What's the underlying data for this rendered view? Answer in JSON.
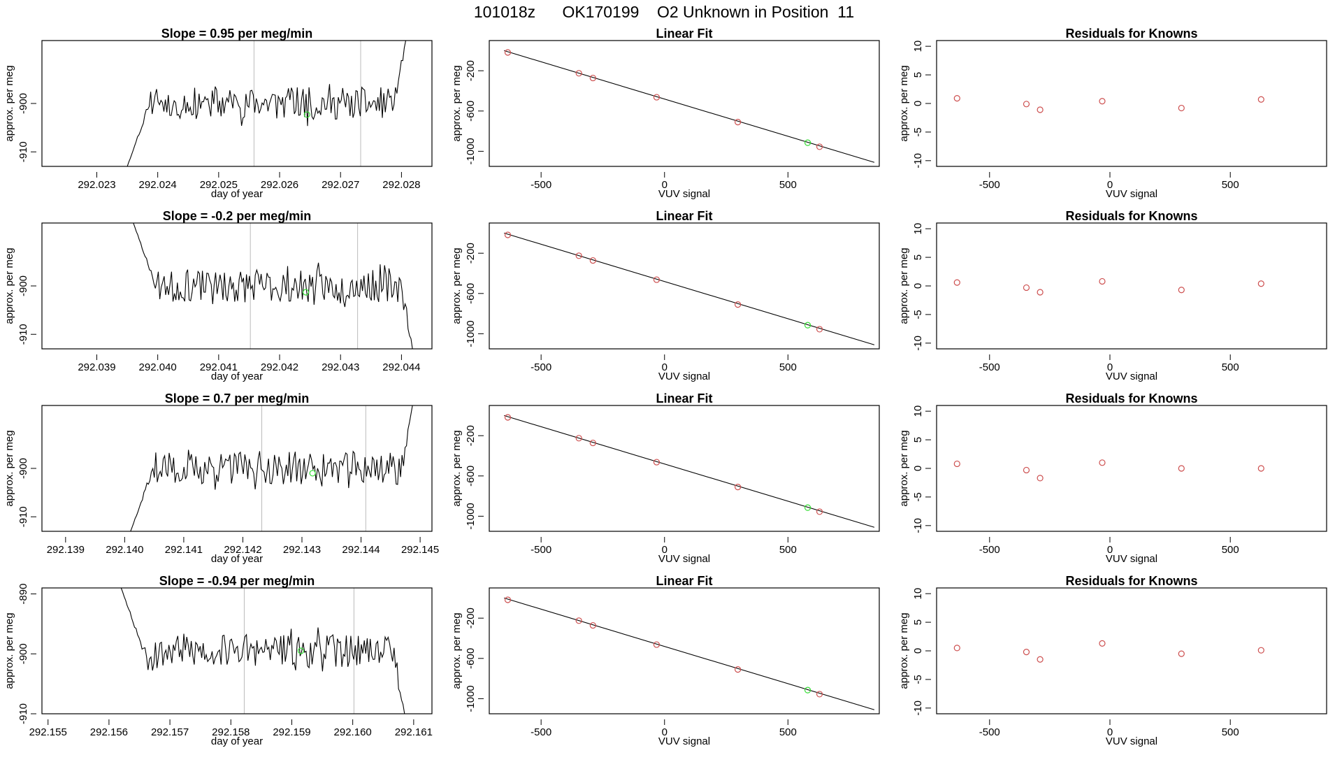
{
  "page_title": "101018z      OK170199    O2 Unknown in Position  11",
  "colors": {
    "frame": "#000000",
    "trace": "#000000",
    "fit_line": "#000000",
    "known_point": "#cd4f4f",
    "unknown_point": "#33dd33",
    "marker_line": "#bbbbbb"
  },
  "chart_data": [
    {
      "type": "line",
      "row": 0,
      "title": "Slope =  0.95  per meg/min",
      "xlabel": "day of year",
      "ylabel": "approx. per meg",
      "xlim": [
        292.0221,
        292.0285
      ],
      "ylim": [
        -913,
        -887
      ],
      "xticks": [
        "292.023",
        "292.024",
        "292.025",
        "292.026",
        "292.027",
        "292.028"
      ],
      "yticks": [
        "-900",
        "-910"
      ],
      "vlines": [
        292.02558,
        292.02733
      ],
      "unknown_point": {
        "x": 292.02645,
        "y": -902.3
      },
      "trace_start": 292.0235,
      "trace_end": 292.02807,
      "trace_seed": 11,
      "trace_levels": [
        -913,
        -901
      ],
      "trace_finish": -887
    },
    {
      "type": "scatter",
      "row": 0,
      "title": "Linear Fit",
      "xlabel": "VUV signal",
      "ylabel": "approx. per meg",
      "xlim": [
        -710,
        870
      ],
      "ylim": [
        -1150,
        100
      ],
      "xticks": [
        "-500",
        "0",
        "500"
      ],
      "yticks": [
        "-200",
        "-600",
        "-1000"
      ],
      "fit_line": {
        "x": [
          -650,
          850
        ],
        "y": [
          0,
          -1110
        ]
      },
      "knowns": [
        [
          -635,
          -18
        ],
        [
          -347,
          -225
        ],
        [
          -290,
          -272
        ],
        [
          -32,
          -463
        ],
        [
          297,
          -710
        ],
        [
          628,
          -955
        ]
      ],
      "unknown": [
        580,
        -915
      ]
    },
    {
      "type": "scatter",
      "row": 0,
      "title": "Residuals for Knowns",
      "xlabel": "VUV signal",
      "ylabel": "approx. per meg",
      "xlim": [
        -720,
        900
      ],
      "ylim": [
        -11,
        11
      ],
      "xticks": [
        "-500",
        "0",
        "500"
      ],
      "yticks": [
        "10",
        "5",
        "0",
        "-5",
        "-10"
      ],
      "residuals": [
        [
          -635,
          0.9
        ],
        [
          -347,
          -0.1
        ],
        [
          -290,
          -1.1
        ],
        [
          -32,
          0.4
        ],
        [
          297,
          -0.8
        ],
        [
          628,
          0.7
        ]
      ]
    },
    {
      "type": "line",
      "row": 1,
      "title": "Slope =  -0.2  per meg/min",
      "xlabel": "day of year",
      "ylabel": "approx. per meg",
      "xlim": [
        292.0381,
        292.0445
      ],
      "ylim": [
        -913,
        -887
      ],
      "xticks": [
        "292.039",
        "292.040",
        "292.041",
        "292.042",
        "292.043",
        "292.044"
      ],
      "yticks": [
        "-900",
        "-910"
      ],
      "vlines": [
        292.04152,
        292.04328
      ],
      "unknown_point": {
        "x": 292.04243,
        "y": -901.3
      },
      "trace_start": 292.0396,
      "trace_end": 292.04418,
      "trace_seed": 23,
      "trace_levels": [
        -887,
        -913
      ],
      "trace_finish": -913
    },
    {
      "type": "scatter",
      "row": 1,
      "title": "Linear Fit",
      "xlabel": "VUV signal",
      "ylabel": "approx. per meg",
      "xlim": [
        -710,
        870
      ],
      "ylim": [
        -1150,
        100
      ],
      "xticks": [
        "-500",
        "0",
        "500"
      ],
      "yticks": [
        "-200",
        "-600",
        "-1000"
      ],
      "fit_line": {
        "x": [
          -650,
          850
        ],
        "y": [
          0,
          -1110
        ]
      },
      "knowns": [
        [
          -635,
          -18
        ],
        [
          -347,
          -225
        ],
        [
          -290,
          -272
        ],
        [
          -32,
          -463
        ],
        [
          297,
          -710
        ],
        [
          628,
          -955
        ]
      ],
      "unknown": [
        580,
        -915
      ]
    },
    {
      "type": "scatter",
      "row": 1,
      "title": "Residuals for Knowns",
      "xlabel": "VUV signal",
      "ylabel": "approx. per meg",
      "xlim": [
        -720,
        900
      ],
      "ylim": [
        -11,
        11
      ],
      "xticks": [
        "-500",
        "0",
        "500"
      ],
      "yticks": [
        "10",
        "5",
        "0",
        "-5",
        "-10"
      ],
      "residuals": [
        [
          -635,
          0.6
        ],
        [
          -347,
          -0.3
        ],
        [
          -290,
          -1.1
        ],
        [
          -32,
          0.8
        ],
        [
          297,
          -0.7
        ],
        [
          628,
          0.4
        ]
      ]
    },
    {
      "type": "line",
      "row": 2,
      "title": "Slope =  0.7  per meg/min",
      "xlabel": "day of year",
      "ylabel": "approx. per meg",
      "xlim": [
        292.1386,
        292.1452
      ],
      "ylim": [
        -913,
        -887
      ],
      "xticks": [
        "292.139",
        "292.140",
        "292.141",
        "292.142",
        "292.143",
        "292.144",
        "292.145"
      ],
      "yticks": [
        "-900",
        "-910"
      ],
      "vlines": [
        292.14232,
        292.14408
      ],
      "unknown_point": {
        "x": 292.14318,
        "y": -901.0
      },
      "trace_start": 292.1401,
      "trace_end": 292.14487,
      "trace_seed": 37,
      "trace_levels": [
        -913,
        -901
      ],
      "trace_finish": -887
    },
    {
      "type": "scatter",
      "row": 2,
      "title": "Linear Fit",
      "xlabel": "VUV signal",
      "ylabel": "approx. per meg",
      "xlim": [
        -710,
        870
      ],
      "ylim": [
        -1150,
        100
      ],
      "xticks": [
        "-500",
        "0",
        "500"
      ],
      "yticks": [
        "-200",
        "-600",
        "-1000"
      ],
      "fit_line": {
        "x": [
          -650,
          850
        ],
        "y": [
          0,
          -1110
        ]
      },
      "knowns": [
        [
          -635,
          -18
        ],
        [
          -347,
          -225
        ],
        [
          -290,
          -272
        ],
        [
          -32,
          -463
        ],
        [
          297,
          -710
        ],
        [
          628,
          -955
        ]
      ],
      "unknown": [
        580,
        -915
      ]
    },
    {
      "type": "scatter",
      "row": 2,
      "title": "Residuals for Knowns",
      "xlabel": "VUV signal",
      "ylabel": "approx. per meg",
      "xlim": [
        -720,
        900
      ],
      "ylim": [
        -11,
        11
      ],
      "xticks": [
        "-500",
        "0",
        "500"
      ],
      "yticks": [
        "10",
        "5",
        "0",
        "-5",
        "-10"
      ],
      "residuals": [
        [
          -635,
          0.8
        ],
        [
          -347,
          -0.3
        ],
        [
          -290,
          -1.7
        ],
        [
          -32,
          1.0
        ],
        [
          297,
          0.0
        ],
        [
          628,
          0.0
        ]
      ]
    },
    {
      "type": "line",
      "row": 3,
      "title": "Slope =  -0.94  per meg/min",
      "xlabel": "day of year",
      "ylabel": "approx. per meg",
      "xlim": [
        292.1549,
        292.1613
      ],
      "ylim": [
        -910,
        -889
      ],
      "xticks": [
        "292.155",
        "292.156",
        "292.157",
        "292.158",
        "292.159",
        "292.160",
        "292.161"
      ],
      "yticks": [
        "-890",
        "-900",
        "-910"
      ],
      "vlines": [
        292.15822,
        292.16002
      ],
      "unknown_point": {
        "x": 292.15915,
        "y": -899.5
      },
      "trace_start": 292.1562,
      "trace_end": 292.16085,
      "trace_seed": 53,
      "trace_levels": [
        -889,
        -910
      ],
      "trace_finish": -910
    },
    {
      "type": "scatter",
      "row": 3,
      "title": "Linear Fit",
      "xlabel": "VUV signal",
      "ylabel": "approx. per meg",
      "xlim": [
        -710,
        870
      ],
      "ylim": [
        -1150,
        100
      ],
      "xticks": [
        "-500",
        "0",
        "500"
      ],
      "yticks": [
        "-200",
        "-600",
        "-1000"
      ],
      "fit_line": {
        "x": [
          -650,
          850
        ],
        "y": [
          0,
          -1110
        ]
      },
      "knowns": [
        [
          -635,
          -18
        ],
        [
          -347,
          -225
        ],
        [
          -290,
          -272
        ],
        [
          -32,
          -463
        ],
        [
          297,
          -710
        ],
        [
          628,
          -955
        ]
      ],
      "unknown": [
        580,
        -915
      ]
    },
    {
      "type": "scatter",
      "row": 3,
      "title": "Residuals for Knowns",
      "xlabel": "VUV signal",
      "ylabel": "approx. per meg",
      "xlim": [
        -720,
        900
      ],
      "ylim": [
        -11,
        11
      ],
      "xticks": [
        "-500",
        "0",
        "500"
      ],
      "yticks": [
        "10",
        "5",
        "0",
        "-5",
        "-10"
      ],
      "residuals": [
        [
          -635,
          0.5
        ],
        [
          -347,
          -0.2
        ],
        [
          -290,
          -1.5
        ],
        [
          -32,
          1.3
        ],
        [
          297,
          -0.5
        ],
        [
          628,
          0.1
        ]
      ]
    }
  ]
}
